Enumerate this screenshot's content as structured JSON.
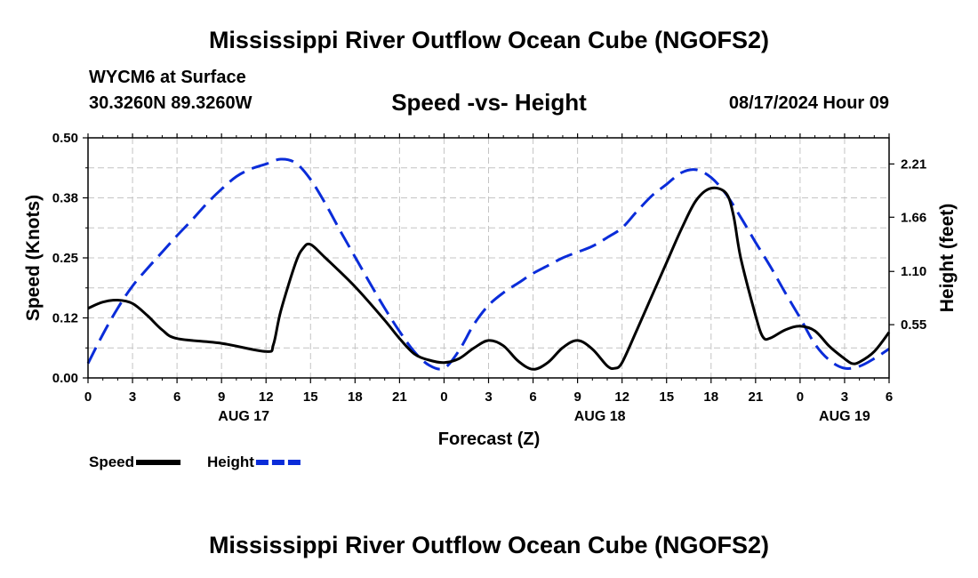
{
  "header": {
    "title": "Mississippi River Outflow Ocean Cube (NGOFS2)",
    "station": "WYCM6 at Surface",
    "coords": "30.3260N  89.3260W",
    "subtitle": "Speed -vs- Height",
    "datetime": "08/17/2024 Hour 09"
  },
  "footer": {
    "title": "Mississippi River Outflow Ocean Cube (NGOFS2)"
  },
  "chart_data": {
    "type": "line",
    "title": "Speed -vs- Height",
    "xlabel": "Forecast (Z)",
    "ylabel": "Speed (Knots)",
    "y2label": "Height (feet)",
    "xlim": [
      0,
      54
    ],
    "ylim": [
      0,
      0.5
    ],
    "y2lim": [
      0.0,
      2.48
    ],
    "x_ticks": [
      0,
      3,
      6,
      9,
      12,
      15,
      18,
      21,
      24,
      27,
      30,
      33,
      36,
      39,
      42,
      45,
      48,
      51,
      54
    ],
    "x_tick_labels": [
      "0",
      "3",
      "6",
      "9",
      "12",
      "15",
      "18",
      "21",
      "0",
      "3",
      "6",
      "9",
      "12",
      "15",
      "18",
      "21",
      "0",
      "3",
      "6"
    ],
    "date_labels": [
      {
        "x": 10.5,
        "label": "AUG 17"
      },
      {
        "x": 34.5,
        "label": "AUG 18"
      },
      {
        "x": 51,
        "label": "AUG 19"
      }
    ],
    "y_ticks": [
      0,
      0.125,
      0.25,
      0.375,
      0.5
    ],
    "y_tick_labels": [
      "0.00",
      "0.12",
      "0.25",
      "0.38",
      "0.50"
    ],
    "y2_ticks": [
      0.55,
      1.1,
      1.66,
      2.21
    ],
    "y2_tick_labels": [
      "0.55",
      "1.10",
      "1.66",
      "2.21"
    ],
    "grid": true,
    "legend_position": "bottom-left",
    "series": [
      {
        "name": "Speed",
        "axis": "left",
        "color": "#000000",
        "style": "solid",
        "x": [
          0,
          1,
          2,
          3,
          4,
          5,
          6,
          9,
          12,
          12.5,
          13,
          14,
          14.5,
          15,
          16,
          18,
          20,
          21,
          22,
          23,
          24,
          25,
          26,
          27,
          28,
          29,
          30,
          31,
          32,
          33,
          34,
          35,
          35.5,
          36,
          37,
          38,
          39,
          40,
          41,
          42,
          43,
          43.5,
          44,
          45,
          45.5,
          46,
          47,
          48,
          49,
          50,
          51,
          51.5,
          52,
          53,
          54
        ],
        "values": [
          0.145,
          0.158,
          0.162,
          0.155,
          0.13,
          0.1,
          0.082,
          0.072,
          0.055,
          0.07,
          0.14,
          0.24,
          0.27,
          0.278,
          0.25,
          0.19,
          0.12,
          0.082,
          0.05,
          0.037,
          0.032,
          0.04,
          0.062,
          0.078,
          0.067,
          0.035,
          0.018,
          0.032,
          0.063,
          0.078,
          0.06,
          0.025,
          0.02,
          0.032,
          0.1,
          0.17,
          0.24,
          0.31,
          0.37,
          0.395,
          0.385,
          0.34,
          0.25,
          0.13,
          0.085,
          0.083,
          0.1,
          0.108,
          0.098,
          0.065,
          0.04,
          0.03,
          0.033,
          0.055,
          0.095
        ]
      },
      {
        "name": "Height",
        "axis": "right",
        "color": "#0a2cd9",
        "style": "dashed",
        "x": [
          0,
          1,
          2,
          3,
          4,
          5,
          6,
          7,
          8,
          9,
          10,
          11,
          12,
          13,
          14,
          15,
          16,
          17,
          18,
          19,
          20,
          21,
          22,
          23,
          24,
          25,
          26,
          27,
          28,
          29,
          30,
          31,
          32,
          33,
          34,
          35,
          36,
          37,
          38,
          39,
          40,
          41,
          42,
          43,
          44,
          45,
          46,
          47,
          48,
          49,
          50,
          51,
          52,
          53,
          54
        ],
        "values": [
          0.15,
          0.45,
          0.72,
          0.95,
          1.13,
          1.3,
          1.47,
          1.63,
          1.8,
          1.95,
          2.08,
          2.16,
          2.21,
          2.26,
          2.22,
          2.05,
          1.8,
          1.52,
          1.25,
          0.98,
          0.72,
          0.48,
          0.27,
          0.13,
          0.1,
          0.28,
          0.55,
          0.75,
          0.88,
          0.98,
          1.08,
          1.16,
          1.24,
          1.3,
          1.36,
          1.45,
          1.55,
          1.72,
          1.88,
          2.0,
          2.12,
          2.15,
          2.07,
          1.9,
          1.66,
          1.4,
          1.15,
          0.88,
          0.62,
          0.35,
          0.18,
          0.1,
          0.12,
          0.2,
          0.3
        ]
      }
    ]
  }
}
